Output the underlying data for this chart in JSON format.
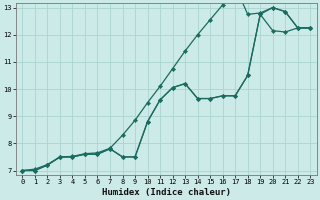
{
  "bg_color": "#cceae7",
  "grid_color": "#aad4d0",
  "line_color": "#1a6b60",
  "xlabel": "Humidex (Indice chaleur)",
  "xlim": [
    -0.5,
    23.5
  ],
  "ylim": [
    6.85,
    13.15
  ],
  "xticks": [
    0,
    1,
    2,
    3,
    4,
    5,
    6,
    7,
    8,
    9,
    10,
    11,
    12,
    13,
    14,
    15,
    16,
    17,
    18,
    19,
    20,
    21,
    22,
    23
  ],
  "yticks": [
    7,
    8,
    9,
    10,
    11,
    12,
    13
  ],
  "line1_x": [
    0,
    1,
    2,
    3,
    4,
    5,
    6,
    7,
    8,
    9,
    10,
    11,
    12,
    13,
    14,
    15,
    16,
    17,
    18,
    19,
    20,
    21,
    22,
    23
  ],
  "line1_y": [
    7.0,
    7.0,
    7.2,
    7.5,
    7.5,
    7.6,
    7.6,
    7.8,
    7.5,
    7.5,
    8.8,
    9.6,
    10.05,
    10.2,
    9.65,
    9.65,
    9.75,
    9.75,
    10.5,
    12.75,
    13.0,
    12.85,
    12.25,
    12.25
  ],
  "line2_x": [
    0,
    1,
    2,
    3,
    4,
    5,
    6,
    7,
    8,
    9,
    10,
    11,
    12,
    13,
    14,
    15,
    16,
    17,
    18,
    19,
    20,
    21,
    22,
    23
  ],
  "line2_y": [
    7.0,
    7.05,
    7.22,
    7.5,
    7.52,
    7.62,
    7.65,
    7.82,
    8.3,
    8.85,
    9.5,
    10.1,
    10.75,
    11.4,
    12.0,
    12.55,
    13.1,
    13.8,
    12.75,
    12.8,
    13.0,
    12.85,
    12.25,
    12.25
  ],
  "line3_x": [
    0,
    1,
    2,
    3,
    4,
    5,
    6,
    7,
    8,
    9,
    10,
    11,
    12,
    13,
    14,
    15,
    16,
    17,
    18,
    19,
    20,
    21,
    22,
    23
  ],
  "line3_y": [
    7.0,
    7.0,
    7.2,
    7.5,
    7.5,
    7.6,
    7.6,
    7.8,
    7.5,
    7.5,
    8.8,
    9.6,
    10.05,
    10.2,
    9.65,
    9.65,
    9.75,
    9.75,
    10.5,
    12.75,
    12.15,
    12.1,
    12.25,
    12.25
  ],
  "tick_fontsize": 5.0,
  "xlabel_fontsize": 6.5,
  "marker_size": 2.2,
  "line_width": 0.9
}
